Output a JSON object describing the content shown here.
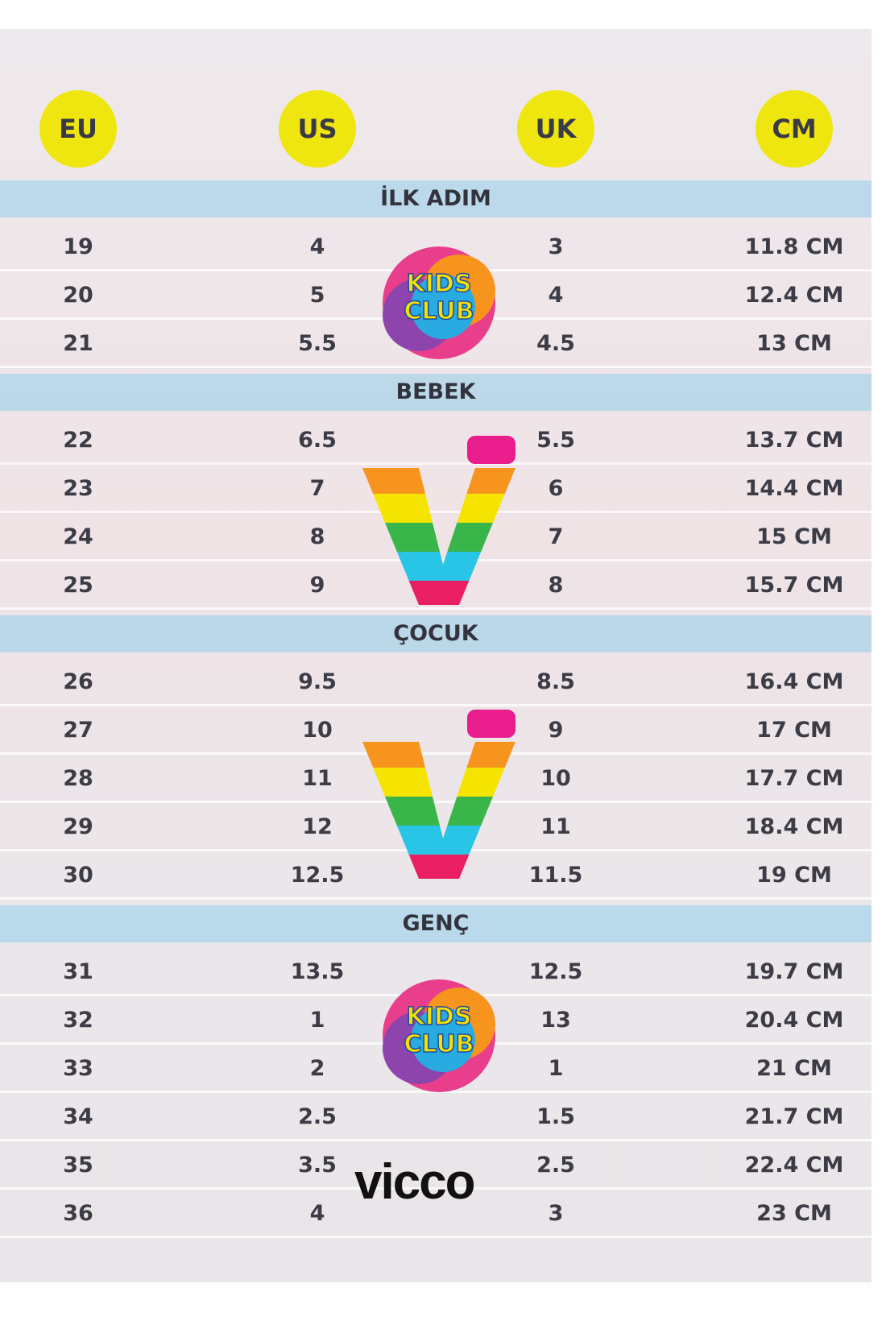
{
  "header": {
    "columns": [
      "EU",
      "US",
      "UK",
      "CM"
    ]
  },
  "brands": {
    "kids_club": "KIDS CLUB",
    "vicco": "vicco"
  },
  "sections": [
    {
      "title": "İLK ADIM",
      "rows": [
        [
          "19",
          "4",
          "3",
          "11.8 CM"
        ],
        [
          "20",
          "5",
          "4",
          "12.4 CM"
        ],
        [
          "21",
          "5.5",
          "4.5",
          "13 CM"
        ]
      ]
    },
    {
      "title": "BEBEK",
      "rows": [
        [
          "22",
          "6.5",
          "5.5",
          "13.7 CM"
        ],
        [
          "23",
          "7",
          "6",
          "14.4 CM"
        ],
        [
          "24",
          "8",
          "7",
          "15 CM"
        ],
        [
          "25",
          "9",
          "8",
          "15.7 CM"
        ]
      ]
    },
    {
      "title": "ÇOCUK",
      "rows": [
        [
          "26",
          "9.5",
          "8.5",
          "16.4 CM"
        ],
        [
          "27",
          "10",
          "9",
          "17 CM"
        ],
        [
          "28",
          "11",
          "10",
          "17.7 CM"
        ],
        [
          "29",
          "12",
          "11",
          "18.4 CM"
        ],
        [
          "30",
          "12.5",
          "11.5",
          "19 CM"
        ]
      ]
    },
    {
      "title": "GENÇ",
      "rows": [
        [
          "31",
          "13.5",
          "12.5",
          "19.7 CM"
        ],
        [
          "32",
          "1",
          "13",
          "20.4 CM"
        ],
        [
          "33",
          "2",
          "1",
          "21 CM"
        ],
        [
          "34",
          "2.5",
          "1.5",
          "21.7 CM"
        ],
        [
          "35",
          "3.5",
          "2.5",
          "22.4 CM"
        ],
        [
          "36",
          "4",
          "3",
          "23 CM"
        ]
      ]
    }
  ]
}
